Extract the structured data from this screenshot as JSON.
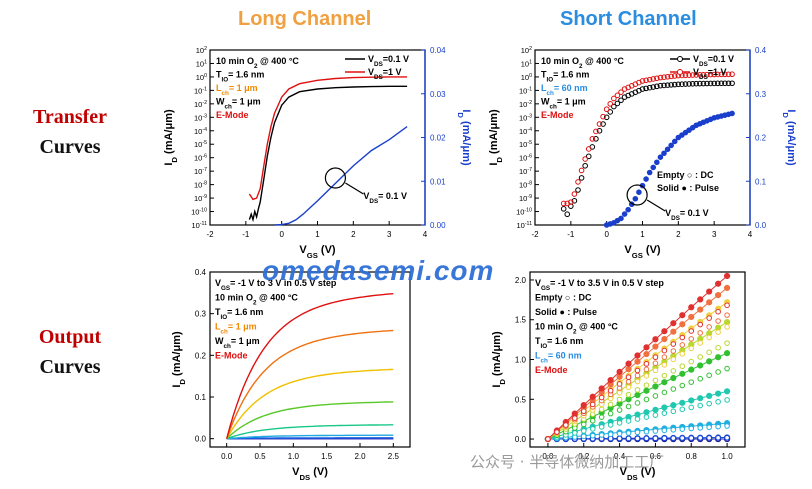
{
  "headers": {
    "long_channel": "Long Channel",
    "short_channel": "Short Channel",
    "transfer_1": "Transfer",
    "transfer_2": "Curves",
    "output_1": "Output",
    "output_2": "Curves"
  },
  "colors": {
    "header_orange": "#f0a040",
    "header_blue": "#2a8de0",
    "row_red": "#c00000",
    "row_black": "#111111"
  },
  "watermark": "omedasemi.com",
  "watermark_wechat": "公众号 · 半导体微纳加工工厂",
  "chart_data": [
    {
      "id": "long-transfer",
      "type": "line",
      "xlabel": "V_GS (V)",
      "ylabel": "I_D (mA/μm)",
      "y2label": "I_D (mA/μm)",
      "xlim": [
        -2,
        4
      ],
      "xticks": [
        "-2",
        "-1",
        "0",
        "1",
        "2",
        "3",
        "4"
      ],
      "ylim_log": [
        -11,
        2
      ],
      "yticks_log": [
        "10^2",
        "10^1",
        "10^0",
        "10^-1",
        "10^-2",
        "10^-3",
        "10^-4",
        "10^-5",
        "10^-6",
        "10^-7",
        "10^-8",
        "10^-9",
        "10^-10",
        "10^-11"
      ],
      "y2lim": [
        0,
        0.04
      ],
      "y2ticks": [
        "0.00",
        "0.01",
        "0.02",
        "0.03",
        "0.04"
      ],
      "legend": [
        {
          "label": "V_DS=0.1 V",
          "color": "#000000"
        },
        {
          "label": "V_DS=1 V",
          "color": "#e01010"
        }
      ],
      "annotations": [
        {
          "text": "10 min O_2 @ 400 °C",
          "color": "#000000"
        },
        {
          "text": "T_IO= 1.6 nm",
          "color": "#000000"
        },
        {
          "text": "L_ch= 1 μm",
          "color": "#f08a00"
        },
        {
          "text": "W_ch= 1 μm",
          "color": "#000000"
        },
        {
          "text": "E-Mode",
          "color": "#e01010"
        }
      ],
      "arrow_label": "V_DS= 0.1 V",
      "series": [
        {
          "name": "V_DS=0.1 V",
          "axis": "log",
          "color": "#000000",
          "x": [
            -0.9,
            -0.85,
            -0.8,
            -0.75,
            -0.7,
            -0.65,
            -0.6,
            -0.5,
            -0.4,
            -0.3,
            -0.2,
            0,
            0.2,
            0.5,
            1,
            1.5,
            2,
            2.5,
            3,
            3.5
          ],
          "y": [
            -10.6,
            -10.2,
            -10.6,
            -10.0,
            -10.4,
            -9.8,
            -9.3,
            -7.6,
            -5.9,
            -4.5,
            -3.4,
            -2.1,
            -1.5,
            -1.1,
            -0.9,
            -0.8,
            -0.75,
            -0.72,
            -0.7,
            -0.7
          ]
        },
        {
          "name": "V_DS=1 V",
          "axis": "log",
          "color": "#e01010",
          "x": [
            -0.9,
            -0.8,
            -0.7,
            -0.6,
            -0.5,
            -0.4,
            -0.3,
            -0.2,
            0,
            0.2,
            0.5,
            1,
            1.5,
            2,
            2.5,
            3,
            3.5
          ],
          "y": [
            -8.7,
            -9.1,
            -9.0,
            -8.3,
            -6.6,
            -5.0,
            -3.7,
            -2.7,
            -1.5,
            -0.9,
            -0.5,
            -0.25,
            -0.12,
            -0.05,
            -0.02,
            0.0,
            0.0
          ]
        },
        {
          "name": "V_DS=0.1 V",
          "axis": "linear",
          "color": "#1a3fcc",
          "x": [
            -0.2,
            0,
            0.2,
            0.4,
            0.6,
            0.8,
            1,
            1.5,
            2,
            2.5,
            3,
            3.5
          ],
          "y": [
            0,
            0.0001,
            0.0004,
            0.0012,
            0.0025,
            0.004,
            0.0055,
            0.0095,
            0.0135,
            0.017,
            0.0195,
            0.0225
          ]
        }
      ]
    },
    {
      "id": "short-transfer",
      "type": "line",
      "xlabel": "V_GS (V)",
      "ylabel": "I_D (mA/μm)",
      "y2label": "I_D (mA/μm)",
      "xlim": [
        -2,
        4
      ],
      "xticks": [
        "-2",
        "-1",
        "0",
        "1",
        "2",
        "3",
        "4"
      ],
      "ylim_log": [
        -11,
        2
      ],
      "yticks_log": [
        "10^2",
        "10^1",
        "10^0",
        "10^-1",
        "10^-2",
        "10^-3",
        "10^-4",
        "10^-5",
        "10^-6",
        "10^-7",
        "10^-8",
        "10^-9",
        "10^-10",
        "10^-11"
      ],
      "y2lim": [
        0,
        0.4
      ],
      "y2ticks": [
        "0.0",
        "0.1",
        "0.2",
        "0.3",
        "0.4"
      ],
      "legend": [
        {
          "label": "V_DS=0.1 V",
          "color": "#000000"
        },
        {
          "label": "V_DS=1 V",
          "color": "#e01010"
        }
      ],
      "annotations": [
        {
          "text": "10 min O_2 @ 400 °C",
          "color": "#000000"
        },
        {
          "text": "T_IO= 1.6 nm",
          "color": "#000000"
        },
        {
          "text": "L_ch= 60 nm",
          "color": "#2a8de0"
        },
        {
          "text": "W_ch= 1 μm",
          "color": "#000000"
        },
        {
          "text": "E-Mode",
          "color": "#e01010"
        }
      ],
      "markers_legend": [
        {
          "text": "Empty ○ : DC"
        },
        {
          "text": "Solid ● : Pulse"
        }
      ],
      "arrow_label": "V_DS= 0.1 V",
      "series": [
        {
          "name": "V_DS=0.1 V",
          "axis": "log",
          "color": "#000000",
          "x": [
            -1.2,
            -1.1,
            -1.0,
            -0.9,
            -0.8,
            -0.6,
            -0.4,
            -0.2,
            0,
            0.2,
            0.5,
            1,
            1.5,
            2,
            2.5,
            3,
            3.5
          ],
          "y": [
            -9.8,
            -10.2,
            -9.6,
            -9.2,
            -8.4,
            -6.6,
            -5.2,
            -4.0,
            -3.0,
            -2.2,
            -1.5,
            -0.9,
            -0.65,
            -0.55,
            -0.5,
            -0.48,
            -0.47
          ]
        },
        {
          "name": "V_DS=1 V",
          "axis": "log",
          "color": "#e01010",
          "x": [
            -1.2,
            -1.1,
            -1.0,
            -0.9,
            -0.8,
            -0.6,
            -0.4,
            -0.2,
            0,
            0.2,
            0.5,
            1,
            1.5,
            2,
            2.5,
            3,
            3.5
          ],
          "y": [
            -9.4,
            -9.4,
            -9.3,
            -8.7,
            -7.8,
            -6.1,
            -4.6,
            -3.5,
            -2.4,
            -1.6,
            -0.9,
            -0.3,
            -0.05,
            0.1,
            0.15,
            0.18,
            0.2
          ]
        },
        {
          "name": "V_DS=0.1 V",
          "axis": "linear",
          "color": "#1a3fcc",
          "x": [
            0,
            0.2,
            0.4,
            0.6,
            0.8,
            1,
            1.2,
            1.5,
            2,
            2.5,
            3,
            3.5
          ],
          "y": [
            0,
            0.005,
            0.015,
            0.035,
            0.06,
            0.09,
            0.12,
            0.155,
            0.2,
            0.228,
            0.245,
            0.255
          ]
        }
      ]
    },
    {
      "id": "long-output",
      "type": "line",
      "xlabel": "V_DS (V)",
      "ylabel": "I_D (mA/μm)",
      "xlim": [
        -0.25,
        2.75
      ],
      "xticks": [
        "0.0",
        "0.5",
        "1.0",
        "1.5",
        "2.0",
        "2.5"
      ],
      "ylim": [
        -0.02,
        0.4
      ],
      "yticks": [
        "0.0",
        "0.1",
        "0.2",
        "0.3",
        "0.4"
      ],
      "annotations": [
        {
          "text": "V_GS= -1 V to 3 V in 0.5 V step",
          "color": "#000000"
        },
        {
          "text": "10 min O_2 @ 400 °C",
          "color": "#000000"
        },
        {
          "text": "T_IO= 1.6 nm",
          "color": "#000000"
        },
        {
          "text": "L_ch= 1 μm",
          "color": "#f08a00"
        },
        {
          "text": "W_ch= 1 μm",
          "color": "#000000"
        },
        {
          "text": "E-Mode",
          "color": "#e01010"
        }
      ],
      "series": [
        {
          "color": "#e01010",
          "isat": 0.335
        },
        {
          "color": "#f07010",
          "isat": 0.25
        },
        {
          "color": "#f0c000",
          "isat": 0.16
        },
        {
          "color": "#58c828",
          "isat": 0.085
        },
        {
          "color": "#18c888",
          "isat": 0.032
        },
        {
          "color": "#20a8e0",
          "isat": 0.008
        },
        {
          "color": "#1860e0",
          "isat": 0.002
        },
        {
          "color": "#3030c8",
          "isat": 0.0
        },
        {
          "color": "#202088",
          "isat": 0.0
        }
      ]
    },
    {
      "id": "short-output",
      "type": "scatter",
      "xlabel": "V_DS (V)",
      "ylabel": "I_D (mA/μm)",
      "xlim": [
        -0.1,
        1.1
      ],
      "xticks": [
        "0.0",
        "0.2",
        "0.4",
        "0.6",
        "0.8",
        "1.0"
      ],
      "ylim": [
        -0.1,
        2.1
      ],
      "yticks": [
        "0.0",
        "0.5",
        "1.0",
        "1.5",
        "2.0"
      ],
      "annotations": [
        {
          "text": "V_GS= -1 V to 3.5 V in 0.5 V step",
          "color": "#000000"
        },
        {
          "text": "Empty ○ : DC",
          "color": "#000000"
        },
        {
          "text": "Solid ● : Pulse",
          "color": "#000000"
        },
        {
          "text": "10 min O_2 @ 400 °C",
          "color": "#000000"
        },
        {
          "text": "T_IO= 1.6 nm",
          "color": "#000000"
        },
        {
          "text": "L_ch= 60 nm",
          "color": "#2a8de0"
        },
        {
          "text": "E-Mode",
          "color": "#e01010"
        }
      ],
      "series": [
        {
          "color": "#e03030",
          "y_at_1": 2.05
        },
        {
          "color": "#f07040",
          "y_at_1": 1.9
        },
        {
          "color": "#f0d040",
          "y_at_1": 1.72
        },
        {
          "color": "#b8d830",
          "y_at_1": 1.47
        },
        {
          "color": "#30c030",
          "y_at_1": 1.08
        },
        {
          "color": "#20c8b0",
          "y_at_1": 0.6
        },
        {
          "color": "#20b0e0",
          "y_at_1": 0.2
        },
        {
          "color": "#1848d8",
          "y_at_1": 0.02
        },
        {
          "color": "#2020a0",
          "y_at_1": 0.0
        },
        {
          "color": "#101060",
          "y_at_1": 0.0
        }
      ]
    }
  ]
}
